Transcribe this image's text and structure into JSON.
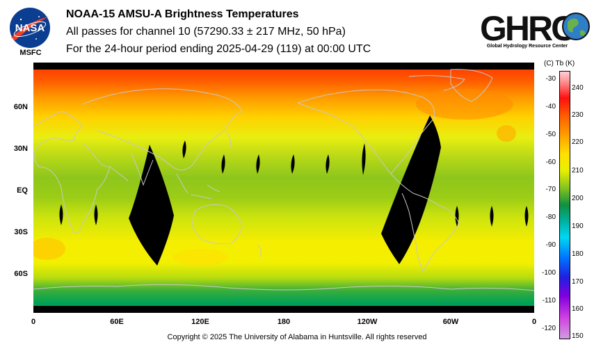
{
  "header": {
    "title": "NOAA-15 AMSU-A Brightness Temperatures",
    "subtitle": "All passes for channel 10 (57290.33 ± 217 MHz, 50 hPa)",
    "period": "For the 24-hour period ending 2025-04-29 (119) at 00:00 UTC"
  },
  "logos": {
    "nasa": "NASA",
    "msfc": "MSFC",
    "ghrc": "GHRC",
    "ghrc_sub": "Global Hydrology Resource Center"
  },
  "map": {
    "lat_labels": [
      "60N",
      "30N",
      "EQ",
      "30S",
      "60S"
    ],
    "lon_labels": [
      "0",
      "60E",
      "120E",
      "180",
      "120W",
      "60W",
      "0"
    ],
    "colors": {
      "pole_north": "#ff3a00",
      "warm": "#ff9900",
      "mid": "#ffe000",
      "tropics": "#9acd14",
      "south": "#f4ee00",
      "antarctic": "#00a04a",
      "gap": "#000000",
      "coast": "#c8c8c8"
    }
  },
  "colorbar": {
    "header": "(C)  Tb  (K)",
    "celsius_ticks": [
      "-30",
      "-40",
      "-50",
      "-60",
      "-70",
      "-80",
      "-90",
      "-100",
      "-110",
      "-120"
    ],
    "kelvin_ticks": [
      "240",
      "230",
      "220",
      "210",
      "200",
      "190",
      "180",
      "170",
      "160",
      "150"
    ]
  },
  "footer": {
    "copyright": "Copyright © 2025 The University of Alabama in Huntsville.  All rights reserved"
  }
}
